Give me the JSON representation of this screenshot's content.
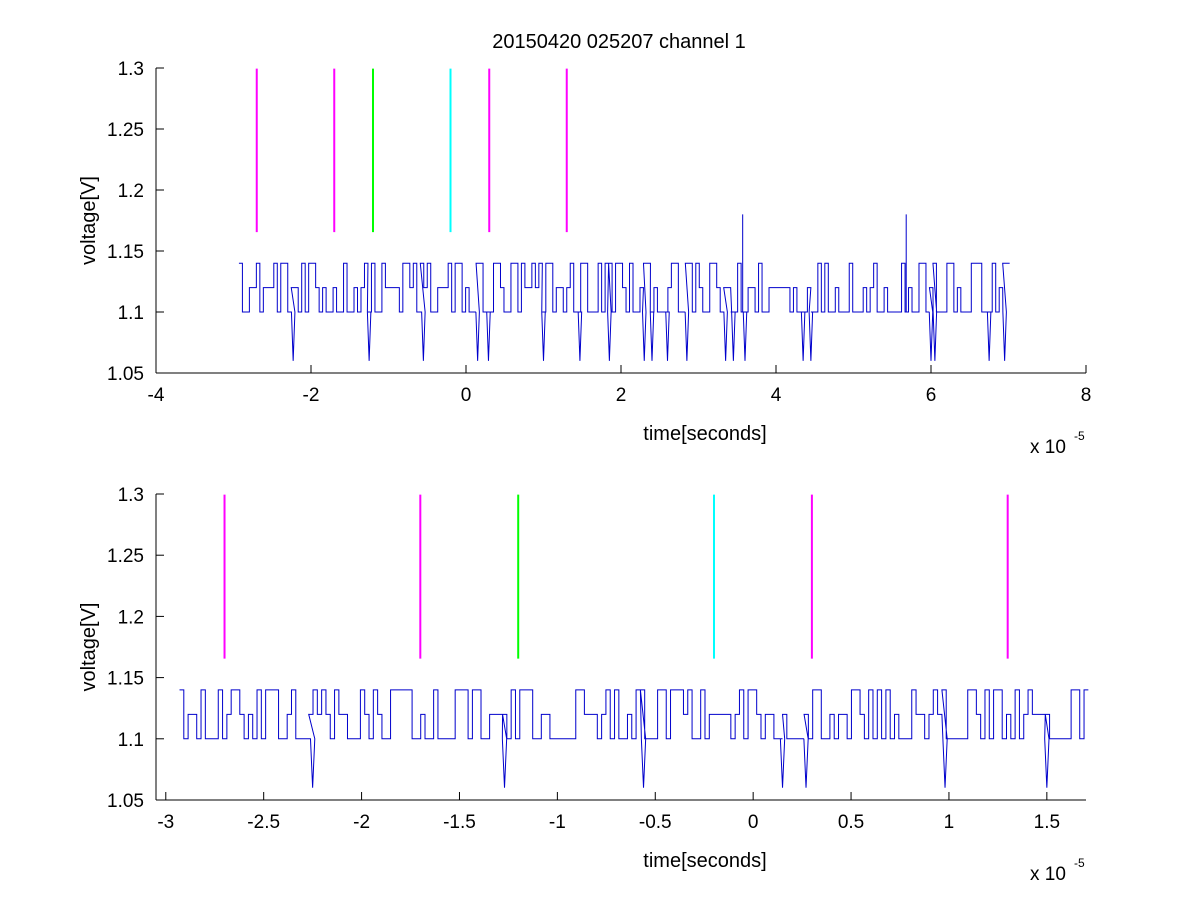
{
  "chart_data": {
    "type": "line",
    "title": "20150420 025207 channel 1",
    "plots": [
      {
        "id": "top",
        "xlabel": "time[seconds]",
        "ylabel": "voltage[V]",
        "xlim": [
          -4,
          8
        ],
        "ylim": [
          1.05,
          1.3
        ],
        "x_scale_label": "x 10",
        "x_scale_exponent": "-5",
        "x_ticks": [
          -4,
          -2,
          0,
          2,
          4,
          6,
          8
        ],
        "x_tick_labels": [
          "-4",
          "-2",
          "0",
          "2",
          "4",
          "6",
          "8"
        ],
        "y_ticks": [
          1.05,
          1.1,
          1.15,
          1.2,
          1.25,
          1.3
        ],
        "y_tick_labels": [
          "1.05",
          "1.1",
          "1.15",
          "1.2",
          "1.25",
          "1.3"
        ],
        "signal": {
          "color": "#0000cc",
          "x_start": -2.93,
          "x_end": 7.0,
          "levels": [
            1.1,
            1.12,
            1.14
          ],
          "dips": [
            -2.23,
            -1.25,
            -0.55,
            0.15,
            0.29,
            1.0,
            1.47,
            1.85,
            2.3,
            2.4,
            2.6,
            2.85,
            3.35,
            3.45,
            3.6,
            4.35,
            4.45,
            6.0,
            6.05,
            6.75,
            6.95
          ],
          "dip_level": 1.06,
          "spikes": [
            [
              3.57,
              1.18
            ],
            [
              5.68,
              1.18
            ]
          ]
        },
        "markers": [
          {
            "x": -2.7,
            "color": "#ff00ff"
          },
          {
            "x": -1.7,
            "color": "#ff00ff"
          },
          {
            "x": -1.2,
            "color": "#00ff00"
          },
          {
            "x": -0.2,
            "color": "#00ffff"
          },
          {
            "x": 0.3,
            "color": "#ff00ff"
          },
          {
            "x": 1.3,
            "color": "#ff00ff"
          }
        ],
        "marker_range": [
          1.1655,
          1.2995
        ]
      },
      {
        "id": "bottom",
        "xlabel": "time[seconds]",
        "ylabel": "voltage[V]",
        "xlim": [
          -3.05,
          1.7
        ],
        "ylim": [
          1.05,
          1.3
        ],
        "x_scale_label": "x 10",
        "x_scale_exponent": "-5",
        "x_ticks": [
          -3,
          -2.5,
          -2,
          -1.5,
          -1,
          -0.5,
          0,
          0.5,
          1,
          1.5
        ],
        "x_tick_labels": [
          "-3",
          "-2.5",
          "-2",
          "-1.5",
          "-1",
          "-0.5",
          "0",
          "0.5",
          "1",
          "1.5"
        ],
        "y_ticks": [
          1.05,
          1.1,
          1.15,
          1.2,
          1.25,
          1.3
        ],
        "y_tick_labels": [
          "1.05",
          "1.1",
          "1.15",
          "1.2",
          "1.25",
          "1.3"
        ],
        "signal": {
          "color": "#0000cc",
          "x_start": -2.93,
          "x_end": 1.7,
          "levels": [
            1.1,
            1.12,
            1.14
          ],
          "dips": [
            -2.25,
            -1.27,
            -0.56,
            0.15,
            0.27,
            0.98,
            1.5
          ],
          "dip_level": 1.06,
          "spikes": []
        },
        "markers": [
          {
            "x": -2.7,
            "color": "#ff00ff"
          },
          {
            "x": -1.7,
            "color": "#ff00ff"
          },
          {
            "x": -1.2,
            "color": "#00ff00"
          },
          {
            "x": -0.2,
            "color": "#00ffff"
          },
          {
            "x": 0.3,
            "color": "#ff00ff"
          },
          {
            "x": 1.3,
            "color": "#ff00ff"
          }
        ],
        "marker_range": [
          1.1655,
          1.2995
        ]
      }
    ]
  }
}
